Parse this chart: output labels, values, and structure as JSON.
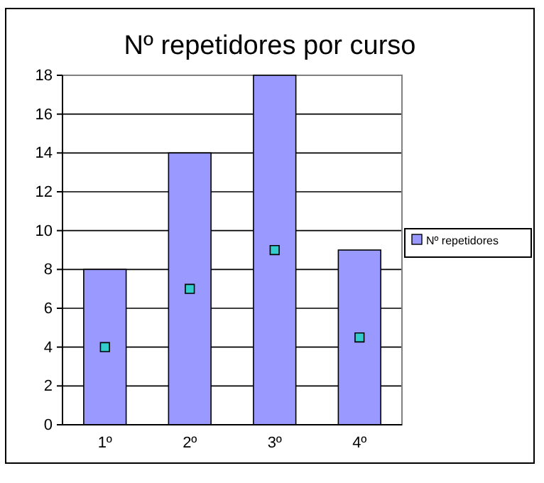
{
  "chart_data": {
    "type": "bar",
    "title": "Nº repetidores por curso",
    "categories": [
      "1º",
      "2º",
      "3º",
      "4º"
    ],
    "series": [
      {
        "name": "Nº repetidores",
        "color": "#9999ff",
        "values": [
          8,
          14,
          18,
          9
        ]
      },
      {
        "type": "scatter",
        "color": "#33cccc",
        "marker": "square",
        "x": [
          "1º",
          "2º",
          "3º",
          "4º"
        ],
        "values": [
          4,
          7,
          9,
          4.5
        ]
      }
    ],
    "ylim": [
      0,
      18
    ],
    "yticks": [
      0,
      2,
      4,
      6,
      8,
      10,
      12,
      14,
      16,
      18
    ],
    "grid": "y",
    "legend": "right"
  }
}
